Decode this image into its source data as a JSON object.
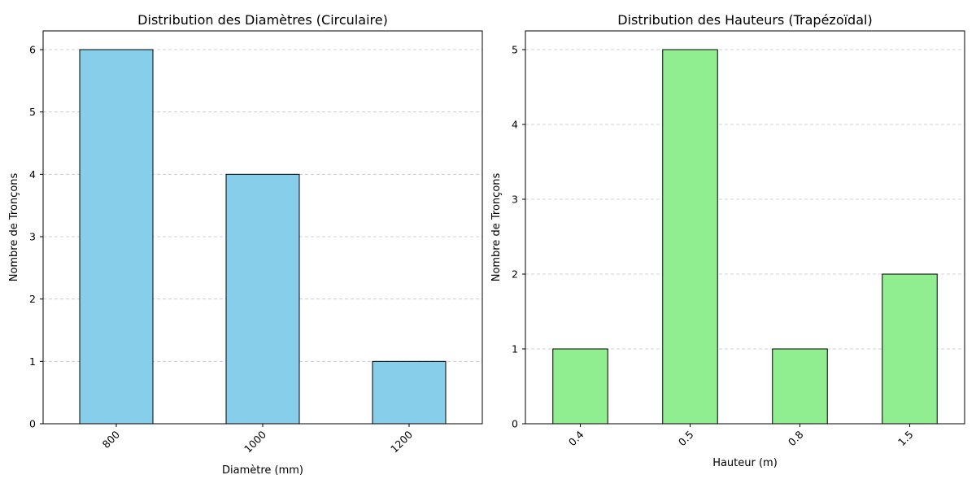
{
  "chart_data": [
    {
      "type": "bar",
      "title": "Distribution des Diamètres (Circulaire)",
      "xlabel": "Diamètre (mm)",
      "ylabel": "Nombre de Tronçons",
      "categories": [
        "800",
        "1000",
        "1200"
      ],
      "values": [
        6,
        4,
        1
      ],
      "ylim": [
        0,
        6.3
      ],
      "yticks": [
        0,
        1,
        2,
        3,
        4,
        5,
        6
      ],
      "bar_color": "#87ceeb",
      "edge_color": "#000000",
      "grid": "y-dashed",
      "xtick_rotation": 45
    },
    {
      "type": "bar",
      "title": "Distribution des Hauteurs (Trapézoïdal)",
      "xlabel": "Hauteur (m)",
      "ylabel": "Nombre de Tronçons",
      "categories": [
        "0.4",
        "0.5",
        "0.8",
        "1.5"
      ],
      "values": [
        1,
        5,
        1,
        2
      ],
      "ylim": [
        0,
        5.25
      ],
      "yticks": [
        0,
        1,
        2,
        3,
        4,
        5
      ],
      "bar_color": "#90ee90",
      "edge_color": "#000000",
      "grid": "y-dashed",
      "xtick_rotation": 45
    }
  ]
}
